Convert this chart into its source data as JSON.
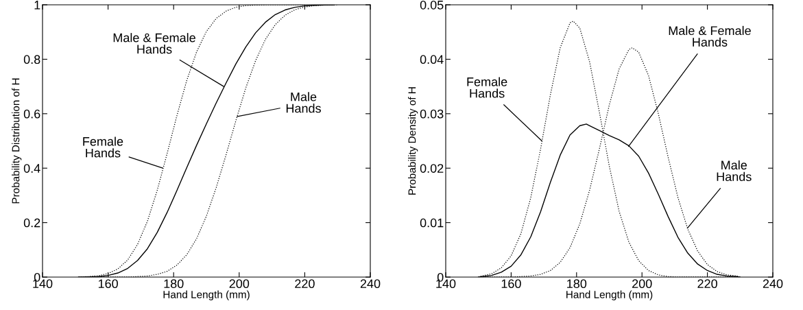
{
  "chart_data": [
    {
      "type": "line",
      "xlabel": "Hand Length (mm)",
      "ylabel": "Probability Distribution of H",
      "xlim": [
        140,
        240
      ],
      "xticks": [
        140,
        160,
        180,
        200,
        220,
        240
      ],
      "ylim": [
        0,
        1
      ],
      "yticks": [
        0,
        0.2,
        0.4,
        0.6,
        0.8,
        1
      ],
      "annotations": [
        {
          "text": "Female\nHands",
          "x": 176.7,
          "y": 0.4
        },
        {
          "text": "Male & Female\nHands",
          "x": 195.3,
          "y": 0.7
        },
        {
          "text": "Male\nHands",
          "x": 199.4,
          "y": 0.59
        }
      ],
      "series": [
        {
          "color": "#000000",
          "line_style": "dotted",
          "x": [
            151,
            154,
            157,
            160,
            163,
            166,
            169,
            172,
            175,
            178,
            181,
            184,
            187,
            190,
            193,
            196,
            199,
            202,
            205,
            208,
            211,
            214,
            220,
            230
          ],
          "values": [
            0.0,
            0.002,
            0.005,
            0.013,
            0.03,
            0.063,
            0.12,
            0.205,
            0.319,
            0.453,
            0.593,
            0.722,
            0.827,
            0.902,
            0.95,
            0.977,
            0.991,
            0.997,
            0.999,
            1.0,
            1.0,
            1.0,
            1.0,
            1.0
          ]
        },
        {
          "color": "#000000",
          "line_style": "solid",
          "x": [
            151,
            154,
            157,
            160,
            163,
            166,
            169,
            172,
            175,
            178,
            181,
            184,
            187,
            190,
            193,
            196,
            199,
            202,
            205,
            208,
            211,
            214,
            217,
            220,
            223,
            226,
            229
          ],
          "values": [
            0.0,
            0.001,
            0.002,
            0.006,
            0.015,
            0.032,
            0.061,
            0.104,
            0.164,
            0.237,
            0.318,
            0.402,
            0.484,
            0.563,
            0.64,
            0.713,
            0.783,
            0.845,
            0.897,
            0.936,
            0.964,
            0.981,
            0.991,
            0.996,
            0.998,
            0.999,
            1.0
          ]
        },
        {
          "color": "#000000",
          "line_style": "dotted",
          "x": [
            151,
            160,
            163,
            166,
            169,
            172,
            175,
            178,
            181,
            184,
            187,
            190,
            193,
            196,
            199,
            202,
            205,
            208,
            211,
            214,
            217,
            220,
            223,
            226,
            229
          ],
          "values": [
            0.0,
            0.0,
            0.0,
            0.0,
            0.002,
            0.004,
            0.01,
            0.021,
            0.044,
            0.082,
            0.141,
            0.224,
            0.329,
            0.449,
            0.575,
            0.694,
            0.795,
            0.873,
            0.927,
            0.962,
            0.982,
            0.992,
            0.997,
            0.999,
            1.0
          ]
        }
      ]
    },
    {
      "type": "line",
      "xlabel": "Hand Length (mm)",
      "ylabel": "Probability Density of H",
      "xlim": [
        140,
        240
      ],
      "xticks": [
        140,
        160,
        180,
        200,
        220,
        240
      ],
      "ylim": [
        0,
        0.05
      ],
      "yticks": [
        0,
        0.01,
        0.02,
        0.03,
        0.04,
        0.05
      ],
      "annotations": [
        {
          "text": "Female\nHands",
          "x": 169.4,
          "y": 0.025
        },
        {
          "text": "Male & Female\nHands",
          "x": 195.9,
          "y": 0.024
        },
        {
          "text": "Male\nHands",
          "x": 213.9,
          "y": 0.009
        }
      ],
      "series": [
        {
          "color": "#000000",
          "line_style": "dotted",
          "x": [
            150,
            151,
            154,
            157,
            160,
            163,
            166,
            169,
            172,
            175,
            178,
            179,
            181,
            184,
            187,
            190,
            193,
            196,
            199,
            202,
            205,
            208,
            211,
            220,
            230
          ],
          "values": [
            0.0,
            0.0002,
            0.0006,
            0.0017,
            0.0039,
            0.008,
            0.0146,
            0.0235,
            0.0335,
            0.0421,
            0.0467,
            0.047,
            0.0457,
            0.0395,
            0.0302,
            0.0204,
            0.0121,
            0.0064,
            0.003,
            0.0012,
            0.0004,
            0.0001,
            0.0,
            0.0,
            0.0
          ]
        },
        {
          "color": "#000000",
          "line_style": "solid",
          "x": [
            150,
            151,
            154,
            157,
            160,
            163,
            166,
            169,
            172,
            175,
            178,
            181,
            183,
            184,
            187,
            190,
            193,
            196,
            199,
            202,
            205,
            208,
            211,
            214,
            217,
            220,
            223,
            226,
            229,
            230
          ],
          "values": [
            0.0,
            0.0001,
            0.0003,
            0.0009,
            0.002,
            0.0041,
            0.0074,
            0.012,
            0.0174,
            0.0224,
            0.0261,
            0.0278,
            0.0281,
            0.0278,
            0.0269,
            0.026,
            0.0252,
            0.0241,
            0.0222,
            0.0191,
            0.0152,
            0.0111,
            0.0073,
            0.0044,
            0.0024,
            0.0012,
            0.0005,
            0.0002,
            0.0001,
            0.0
          ]
        },
        {
          "color": "#000000",
          "line_style": "dotted",
          "x": [
            150,
            160,
            163,
            166,
            169,
            172,
            175,
            178,
            181,
            184,
            187,
            190,
            193,
            196,
            197,
            199,
            202,
            205,
            208,
            211,
            214,
            217,
            220,
            223,
            226,
            229,
            230
          ],
          "values": [
            0.0,
            0.0,
            0.0001,
            0.0002,
            0.0005,
            0.0012,
            0.0027,
            0.0054,
            0.0098,
            0.016,
            0.0236,
            0.0316,
            0.0382,
            0.0418,
            0.0421,
            0.0413,
            0.037,
            0.03,
            0.022,
            0.0146,
            0.0088,
            0.0048,
            0.0023,
            0.001,
            0.0004,
            0.0002,
            0.0
          ]
        }
      ]
    }
  ]
}
